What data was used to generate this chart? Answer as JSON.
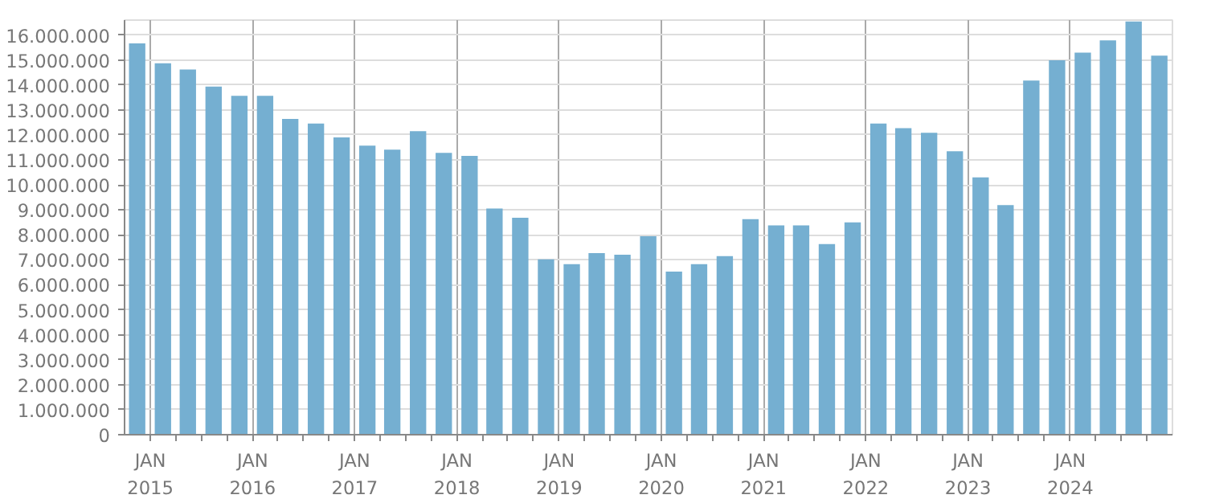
{
  "chart_data": {
    "type": "bar",
    "x": [
      "2014-11-15",
      "2015-02-15",
      "2015-05-15",
      "2015-08-15",
      "2015-11-15",
      "2016-02-15",
      "2016-05-15",
      "2016-08-15",
      "2016-11-15",
      "2017-02-15",
      "2017-05-15",
      "2017-08-15",
      "2017-11-15",
      "2018-02-15",
      "2018-05-15",
      "2018-08-15",
      "2018-11-15",
      "2019-02-15",
      "2019-05-15",
      "2019-08-15",
      "2019-11-15",
      "2020-02-15",
      "2020-05-15",
      "2020-08-15",
      "2020-11-15",
      "2021-02-15",
      "2021-05-15",
      "2021-08-15",
      "2021-11-15",
      "2022-02-15",
      "2022-05-15",
      "2022-08-15",
      "2022-11-15",
      "2023-02-15",
      "2023-05-15",
      "2023-08-15",
      "2023-11-15",
      "2024-02-15",
      "2024-05-15",
      "2024-08-15",
      "2024-11-15"
    ],
    "values": [
      15670000,
      14870000,
      14620000,
      13940000,
      13570000,
      13570000,
      12640000,
      12460000,
      11900000,
      11570000,
      11410000,
      12150000,
      11280000,
      11160000,
      9060000,
      8690000,
      7020000,
      6830000,
      7270000,
      7210000,
      7950000,
      6530000,
      6830000,
      7150000,
      8630000,
      8380000,
      8380000,
      7630000,
      8500000,
      12460000,
      12270000,
      12090000,
      11350000,
      10300000,
      9190000,
      14180000,
      14990000,
      15300000,
      15790000,
      16540000,
      15180000
    ],
    "color": "#75afd1",
    "xlim": [
      "2014-10-01",
      "2025-01-01"
    ],
    "xticks": [
      {
        "value": "2015-01-01",
        "label": "JAN\n2015"
      },
      {
        "value": "2015-04-01",
        "label": null
      },
      {
        "value": "2015-07-01",
        "label": null
      },
      {
        "value": "2015-10-01",
        "label": null
      },
      {
        "value": "2016-01-01",
        "label": "JAN\n2016"
      },
      {
        "value": "2016-04-01",
        "label": null
      },
      {
        "value": "2016-07-01",
        "label": null
      },
      {
        "value": "2016-10-01",
        "label": null
      },
      {
        "value": "2017-01-01",
        "label": "JAN\n2017"
      },
      {
        "value": "2017-04-01",
        "label": null
      },
      {
        "value": "2017-07-01",
        "label": null
      },
      {
        "value": "2017-10-01",
        "label": null
      },
      {
        "value": "2018-01-01",
        "label": "JAN\n2018"
      },
      {
        "value": "2018-04-01",
        "label": null
      },
      {
        "value": "2018-07-01",
        "label": null
      },
      {
        "value": "2018-10-01",
        "label": null
      },
      {
        "value": "2019-01-01",
        "label": "JAN\n2019"
      },
      {
        "value": "2019-04-01",
        "label": null
      },
      {
        "value": "2019-07-01",
        "label": null
      },
      {
        "value": "2019-10-01",
        "label": null
      },
      {
        "value": "2020-01-01",
        "label": "JAN\n2020"
      },
      {
        "value": "2020-04-01",
        "label": null
      },
      {
        "value": "2020-07-01",
        "label": null
      },
      {
        "value": "2020-10-01",
        "label": null
      },
      {
        "value": "2021-01-01",
        "label": "JAN\n2021"
      },
      {
        "value": "2021-04-01",
        "label": null
      },
      {
        "value": "2021-07-01",
        "label": null
      },
      {
        "value": "2021-10-01",
        "label": null
      },
      {
        "value": "2022-01-01",
        "label": "JAN\n2022"
      },
      {
        "value": "2022-04-01",
        "label": null
      },
      {
        "value": "2022-07-01",
        "label": null
      },
      {
        "value": "2022-10-01",
        "label": null
      },
      {
        "value": "2023-01-01",
        "label": "JAN\n2023"
      },
      {
        "value": "2023-04-01",
        "label": null
      },
      {
        "value": "2023-07-01",
        "label": null
      },
      {
        "value": "2023-10-01",
        "label": null
      },
      {
        "value": "2024-01-01",
        "label": "JAN\n2024"
      },
      {
        "value": "2024-04-01",
        "label": null
      },
      {
        "value": "2024-07-01",
        "label": null
      },
      {
        "value": "2024-10-01",
        "label": null
      }
    ],
    "ylim": [
      0,
      16600000
    ],
    "yticks": [
      {
        "value": 0,
        "label": "0"
      },
      {
        "value": 1000000,
        "label": "1.000.000"
      },
      {
        "value": 2000000,
        "label": "2.000.000"
      },
      {
        "value": 3000000,
        "label": "3.000.000"
      },
      {
        "value": 4000000,
        "label": "4.000.000"
      },
      {
        "value": 5000000,
        "label": "5.000.000"
      },
      {
        "value": 6000000,
        "label": "6.000.000"
      },
      {
        "value": 7000000,
        "label": "7.000.000"
      },
      {
        "value": 8000000,
        "label": "8.000.000"
      },
      {
        "value": 9000000,
        "label": "9.000.000"
      },
      {
        "value": 10000000,
        "label": "10.000.000"
      },
      {
        "value": 11000000,
        "label": "11.000.000"
      },
      {
        "value": 12000000,
        "label": "12.000.000"
      },
      {
        "value": 13000000,
        "label": "13.000.000"
      },
      {
        "value": 14000000,
        "label": "14.000.000"
      },
      {
        "value": 15000000,
        "label": "15.000.000"
      },
      {
        "value": 16000000,
        "label": "16.000.000"
      }
    ],
    "grid": true
  }
}
